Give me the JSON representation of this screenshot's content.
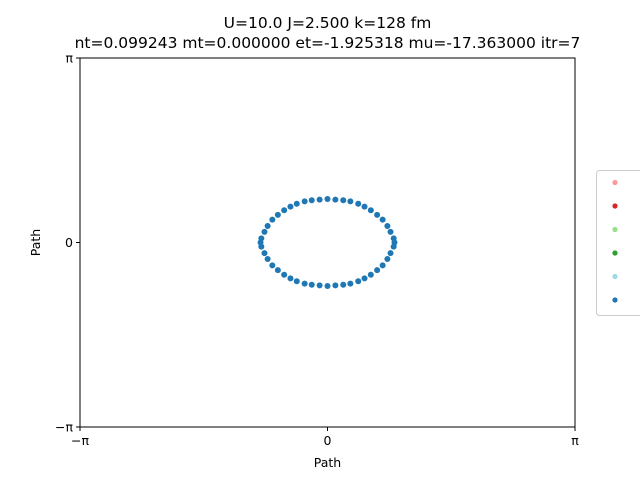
{
  "chart_data": {
    "type": "scatter",
    "title_line1": "U=10.0 J=2.500 k=128 fm",
    "title_line2": "nt=0.099243 mt=0.000000 et=-1.925318 mu=-17.363000 itr=7",
    "xlabel": "Path",
    "ylabel": "Path",
    "xlim": [
      -3.14159,
      3.14159
    ],
    "ylim": [
      -3.14159,
      3.14159
    ],
    "xticks": [
      {
        "value": -3.14159,
        "label": "−π"
      },
      {
        "value": 0,
        "label": "0"
      },
      {
        "value": 3.14159,
        "label": "π"
      }
    ],
    "yticks": [
      {
        "value": -3.14159,
        "label": "−π"
      },
      {
        "value": 0,
        "label": "0"
      },
      {
        "value": 3.14159,
        "label": "π"
      }
    ],
    "grid": false,
    "legend": {
      "placement": "center-right",
      "entries": [
        {
          "color": "#ff9896"
        },
        {
          "color": "#d62728"
        },
        {
          "color": "#98df8a"
        },
        {
          "color": "#2ca02c"
        },
        {
          "color": "#9edae5"
        },
        {
          "color": "#1f77b4"
        }
      ]
    },
    "series": [
      {
        "color": "#1f77b4",
        "x": [
          0.0,
          0.1,
          0.2,
          0.29,
          0.39,
          0.47,
          0.55,
          0.63,
          0.7,
          0.76,
          0.8,
          0.84,
          0.85,
          0.84,
          0.8,
          0.76,
          0.7,
          0.63,
          0.55,
          0.47,
          0.39,
          0.29,
          0.2,
          0.1,
          0.0,
          -0.1,
          -0.2,
          -0.29,
          -0.39,
          -0.47,
          -0.55,
          -0.63,
          -0.7,
          -0.76,
          -0.8,
          -0.84,
          -0.85,
          -0.84,
          -0.8,
          -0.76,
          -0.7,
          -0.63,
          -0.55,
          -0.47,
          -0.39,
          -0.29,
          -0.2,
          -0.1
        ],
        "y": [
          0.74,
          0.73,
          0.72,
          0.7,
          0.66,
          0.61,
          0.55,
          0.47,
          0.39,
          0.28,
          0.18,
          0.07,
          0.0,
          -0.07,
          -0.18,
          -0.28,
          -0.39,
          -0.47,
          -0.55,
          -0.61,
          -0.66,
          -0.7,
          -0.72,
          -0.73,
          -0.74,
          -0.73,
          -0.72,
          -0.7,
          -0.66,
          -0.61,
          -0.55,
          -0.47,
          -0.39,
          -0.28,
          -0.18,
          -0.07,
          0.0,
          0.07,
          0.18,
          0.28,
          0.39,
          0.47,
          0.55,
          0.61,
          0.66,
          0.7,
          0.72,
          0.73
        ]
      }
    ]
  }
}
